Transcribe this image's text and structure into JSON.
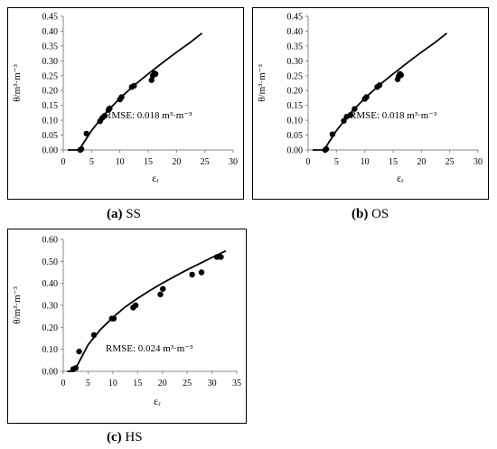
{
  "captions": [
    {
      "letter": "(a)",
      "text": "SS"
    },
    {
      "letter": "(b)",
      "text": "OS"
    },
    {
      "letter": "(c)",
      "text": "HS"
    }
  ],
  "chart_data": [
    {
      "id": "a",
      "type": "scatter",
      "xlabel": "εᵣ",
      "ylabel": "θ/m³·m⁻³",
      "xlim": [
        0,
        30
      ],
      "ylim": [
        0,
        0.45
      ],
      "xticks": [
        0,
        5,
        10,
        15,
        20,
        25,
        30
      ],
      "yticks": [
        0.0,
        0.05,
        0.1,
        0.15,
        0.2,
        0.25,
        0.3,
        0.35,
        0.4,
        0.45
      ],
      "ytick_decimals": 2,
      "annotation": "RMSE:  0.018 m³·m⁻³",
      "grid": false,
      "points": {
        "x": [
          3.0,
          3.2,
          4.1,
          6.5,
          6.9,
          7.3,
          8.0,
          8.2,
          10.0,
          10.3,
          12.1,
          12.5,
          15.6,
          15.8,
          16.1,
          16.3
        ],
        "y": [
          0.0,
          0.003,
          0.055,
          0.097,
          0.108,
          0.115,
          0.135,
          0.14,
          0.17,
          0.178,
          0.212,
          0.216,
          0.235,
          0.25,
          0.258,
          0.256
        ]
      },
      "fit_line": {
        "x": [
          0.8,
          2.8,
          5,
          7.5,
          10,
          12.5,
          15,
          17.5,
          20,
          22.5,
          24.5
        ],
        "y": [
          0.0,
          0.0,
          0.065,
          0.125,
          0.174,
          0.217,
          0.256,
          0.293,
          0.329,
          0.363,
          0.393
        ]
      }
    },
    {
      "id": "b",
      "type": "scatter",
      "xlabel": "εᵣ",
      "ylabel": "θ/m³·m⁻³",
      "xlim": [
        0,
        30
      ],
      "ylim": [
        0,
        0.45
      ],
      "xticks": [
        0,
        5,
        10,
        15,
        20,
        25,
        30
      ],
      "yticks": [
        0.0,
        0.05,
        0.1,
        0.15,
        0.2,
        0.25,
        0.3,
        0.35,
        0.4,
        0.45
      ],
      "ytick_decimals": 2,
      "annotation": "RMSE:  0.018 m³·m⁻³",
      "grid": false,
      "points": {
        "x": [
          3.0,
          3.2,
          4.3,
          6.3,
          6.8,
          7.5,
          8.2,
          10.0,
          10.3,
          12.2,
          12.6,
          15.8,
          16.0,
          16.2,
          16.4
        ],
        "y": [
          0.0,
          0.003,
          0.053,
          0.098,
          0.112,
          0.118,
          0.138,
          0.172,
          0.178,
          0.212,
          0.218,
          0.238,
          0.248,
          0.256,
          0.252
        ]
      },
      "fit_line": {
        "x": [
          0.8,
          2.8,
          5,
          7.5,
          10,
          12.5,
          15,
          17.5,
          20,
          22.5,
          24.5
        ],
        "y": [
          0.0,
          0.0,
          0.065,
          0.125,
          0.174,
          0.217,
          0.256,
          0.293,
          0.329,
          0.363,
          0.393
        ]
      }
    },
    {
      "id": "c",
      "type": "scatter",
      "xlabel": "εᵣ",
      "ylabel": "θ/m³·m⁻³",
      "xlim": [
        0,
        35
      ],
      "ylim": [
        0,
        0.6
      ],
      "xticks": [
        0,
        5,
        10,
        15,
        20,
        25,
        30,
        35
      ],
      "yticks": [
        0.0,
        0.1,
        0.2,
        0.3,
        0.4,
        0.5,
        0.6
      ],
      "ytick_decimals": 2,
      "annotation": "RMSE:  0.024 m³·m⁻³",
      "grid": false,
      "points": {
        "x": [
          2.0,
          2.5,
          3.2,
          6.2,
          9.8,
          10.2,
          14.1,
          14.6,
          19.6,
          20.1,
          26.0,
          27.9,
          31.0,
          31.8
        ],
        "y": [
          0.01,
          0.015,
          0.09,
          0.165,
          0.24,
          0.24,
          0.29,
          0.3,
          0.35,
          0.375,
          0.44,
          0.45,
          0.52,
          0.52
        ]
      },
      "fit_line": {
        "x": [
          0.8,
          2.2,
          5,
          7.5,
          10,
          12.5,
          15,
          17.5,
          20,
          22.5,
          25,
          27.5,
          30,
          32.8
        ],
        "y": [
          0.0,
          0.0,
          0.12,
          0.19,
          0.245,
          0.293,
          0.332,
          0.368,
          0.401,
          0.432,
          0.462,
          0.49,
          0.518,
          0.548
        ]
      }
    }
  ]
}
